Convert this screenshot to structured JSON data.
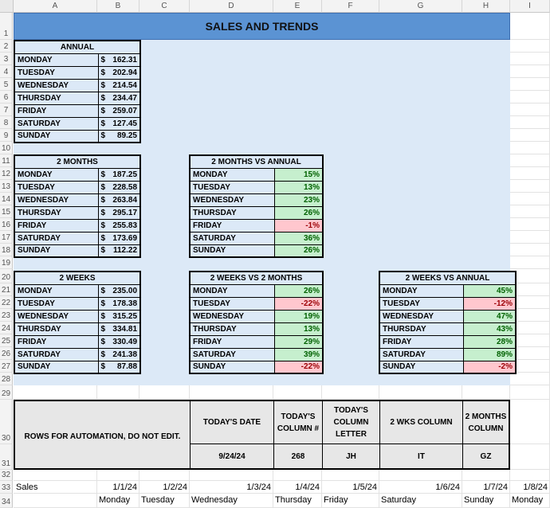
{
  "column_headers": [
    "A",
    "B",
    "C",
    "D",
    "E",
    "F",
    "G",
    "H",
    "I"
  ],
  "row_numbers": [
    "1",
    "2",
    "3",
    "4",
    "5",
    "6",
    "7",
    "8",
    "9",
    "10",
    "11",
    "12",
    "13",
    "14",
    "15",
    "16",
    "17",
    "18",
    "19",
    "20",
    "21",
    "22",
    "23",
    "24",
    "25",
    "26",
    "27",
    "28",
    "29",
    "30",
    "31",
    "32",
    "33",
    "34"
  ],
  "title": "SALES AND TRENDS",
  "annual": {
    "title": "ANNUAL",
    "rows": [
      {
        "day": "MONDAY",
        "cur": "$",
        "val": "162.31"
      },
      {
        "day": "TUESDAY",
        "cur": "$",
        "val": "202.94"
      },
      {
        "day": "WEDNESDAY",
        "cur": "$",
        "val": "214.54"
      },
      {
        "day": "THURSDAY",
        "cur": "$",
        "val": "234.47"
      },
      {
        "day": "FRIDAY",
        "cur": "$",
        "val": "259.07"
      },
      {
        "day": "SATURDAY",
        "cur": "$",
        "val": "127.45"
      },
      {
        "day": "SUNDAY",
        "cur": "$",
        "val": "89.25"
      }
    ]
  },
  "two_months": {
    "title": "2 MONTHS",
    "rows": [
      {
        "day": "MONDAY",
        "cur": "$",
        "val": "187.25"
      },
      {
        "day": "TUESDAY",
        "cur": "$",
        "val": "228.58"
      },
      {
        "day": "WEDNESDAY",
        "cur": "$",
        "val": "263.84"
      },
      {
        "day": "THURSDAY",
        "cur": "$",
        "val": "295.17"
      },
      {
        "day": "FRIDAY",
        "cur": "$",
        "val": "255.83"
      },
      {
        "day": "SATURDAY",
        "cur": "$",
        "val": "173.69"
      },
      {
        "day": "SUNDAY",
        "cur": "$",
        "val": "112.22"
      }
    ]
  },
  "two_weeks": {
    "title": "2 WEEKS",
    "rows": [
      {
        "day": "MONDAY",
        "cur": "$",
        "val": "235.00"
      },
      {
        "day": "TUESDAY",
        "cur": "$",
        "val": "178.38"
      },
      {
        "day": "WEDNESDAY",
        "cur": "$",
        "val": "315.25"
      },
      {
        "day": "THURSDAY",
        "cur": "$",
        "val": "334.81"
      },
      {
        "day": "FRIDAY",
        "cur": "$",
        "val": "330.49"
      },
      {
        "day": "SATURDAY",
        "cur": "$",
        "val": "241.38"
      },
      {
        "day": "SUNDAY",
        "cur": "$",
        "val": "87.88"
      }
    ]
  },
  "two_months_vs_annual": {
    "title": "2 MONTHS VS ANNUAL",
    "rows": [
      {
        "day": "MONDAY",
        "pct": "15%",
        "sign": "pos"
      },
      {
        "day": "TUESDAY",
        "pct": "13%",
        "sign": "pos"
      },
      {
        "day": "WEDNESDAY",
        "pct": "23%",
        "sign": "pos"
      },
      {
        "day": "THURSDAY",
        "pct": "26%",
        "sign": "pos"
      },
      {
        "day": "FRIDAY",
        "pct": "-1%",
        "sign": "neg"
      },
      {
        "day": "SATURDAY",
        "pct": "36%",
        "sign": "pos"
      },
      {
        "day": "SUNDAY",
        "pct": "26%",
        "sign": "pos"
      }
    ]
  },
  "two_weeks_vs_two_months": {
    "title": "2 WEEKS VS 2 MONTHS",
    "rows": [
      {
        "day": "MONDAY",
        "pct": "26%",
        "sign": "pos"
      },
      {
        "day": "TUESDAY",
        "pct": "-22%",
        "sign": "neg"
      },
      {
        "day": "WEDNESDAY",
        "pct": "19%",
        "sign": "pos"
      },
      {
        "day": "THURSDAY",
        "pct": "13%",
        "sign": "pos"
      },
      {
        "day": "FRIDAY",
        "pct": "29%",
        "sign": "pos"
      },
      {
        "day": "SATURDAY",
        "pct": "39%",
        "sign": "pos"
      },
      {
        "day": "SUNDAY",
        "pct": "-22%",
        "sign": "neg"
      }
    ]
  },
  "two_weeks_vs_annual": {
    "title": "2 WEEKS VS ANNUAL",
    "rows": [
      {
        "day": "MONDAY",
        "pct": "45%",
        "sign": "pos"
      },
      {
        "day": "TUESDAY",
        "pct": "-12%",
        "sign": "neg"
      },
      {
        "day": "WEDNESDAY",
        "pct": "47%",
        "sign": "pos"
      },
      {
        "day": "THURSDAY",
        "pct": "43%",
        "sign": "pos"
      },
      {
        "day": "FRIDAY",
        "pct": "28%",
        "sign": "pos"
      },
      {
        "day": "SATURDAY",
        "pct": "89%",
        "sign": "pos"
      },
      {
        "day": "SUNDAY",
        "pct": "-2%",
        "sign": "neg"
      }
    ]
  },
  "automation": {
    "label": "ROWS FOR AUTOMATION, DO NOT EDIT.",
    "headers": {
      "todays_date": "TODAY'S DATE",
      "todays_col_num": "TODAY'S COLUMN #",
      "todays_col_letter": "TODAY'S COLUMN LETTER",
      "two_wks_col": "2 WKS COLUMN",
      "two_months_col": "2 MONTHS COLUMN"
    },
    "values": {
      "todays_date": "9/24/24",
      "todays_col_num": "268",
      "todays_col_letter": "JH",
      "two_wks_col": "IT",
      "two_months_col": "GZ"
    }
  },
  "sales_row": {
    "label": "Sales",
    "dates": [
      "1/1/24",
      "1/2/24",
      "1/3/24",
      "1/4/24",
      "1/5/24",
      "1/6/24",
      "1/7/24",
      "1/8/24"
    ],
    "weekdays": [
      "Monday",
      "Tuesday",
      "Wednesday",
      "Thursday",
      "Friday",
      "Saturday",
      "Sunday",
      "Monday"
    ]
  },
  "colors": {
    "title_blue": "#5b93d3",
    "panel_blue": "#dce9f7",
    "positive_fill": "#c6efce",
    "positive_text": "#006100",
    "negative_fill": "#ffc7ce",
    "negative_text": "#9c0006",
    "automation_gray": "#e7e7e7"
  }
}
